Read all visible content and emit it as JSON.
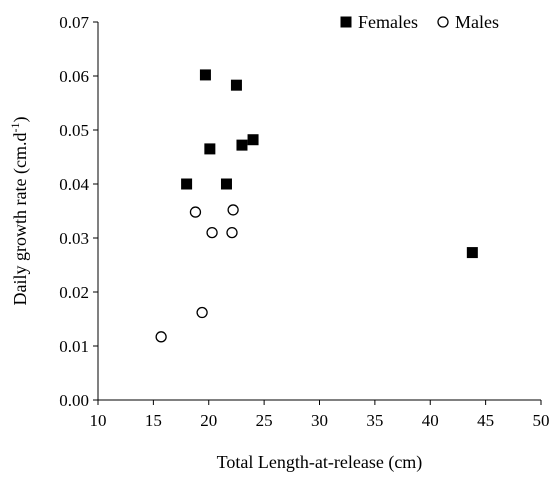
{
  "chart_data": {
    "type": "scatter",
    "xlabel": "Total Length-at-release (cm)",
    "ylabel": "Daily growth rate (cm.d-1)",
    "ylabel_parts": {
      "base": "Daily growth rate (cm.d",
      "sup": "-1",
      "close": ")"
    },
    "xlim": [
      10,
      50
    ],
    "ylim": [
      0,
      0.07
    ],
    "xticks": [
      10,
      15,
      20,
      25,
      30,
      35,
      40,
      45,
      50
    ],
    "yticks": [
      "0.00",
      "0.01",
      "0.02",
      "0.03",
      "0.04",
      "0.05",
      "0.06",
      "0.07"
    ],
    "grid": false,
    "legend_position": "top-right",
    "series": [
      {
        "name": "Females",
        "marker": "filled-square",
        "color": "#000000",
        "points": [
          {
            "x": 19.7,
            "y": 0.0602
          },
          {
            "x": 22.5,
            "y": 0.0583
          },
          {
            "x": 20.1,
            "y": 0.0465
          },
          {
            "x": 23.0,
            "y": 0.0472
          },
          {
            "x": 24.0,
            "y": 0.0482
          },
          {
            "x": 18.0,
            "y": 0.04
          },
          {
            "x": 21.6,
            "y": 0.04
          },
          {
            "x": 43.8,
            "y": 0.0273
          }
        ]
      },
      {
        "name": "Males",
        "marker": "open-circle",
        "color": "#000000",
        "points": [
          {
            "x": 18.8,
            "y": 0.0348
          },
          {
            "x": 22.2,
            "y": 0.0352
          },
          {
            "x": 20.3,
            "y": 0.031
          },
          {
            "x": 22.1,
            "y": 0.031
          },
          {
            "x": 19.4,
            "y": 0.0162
          },
          {
            "x": 15.7,
            "y": 0.0117
          }
        ]
      }
    ]
  }
}
